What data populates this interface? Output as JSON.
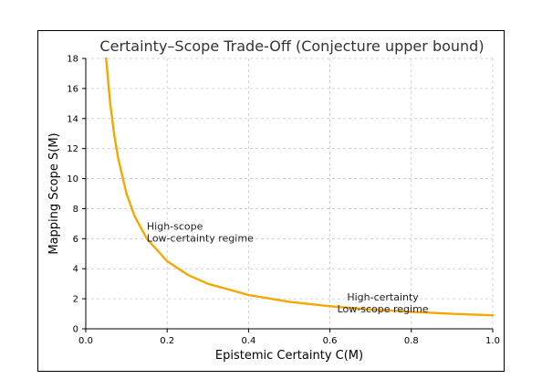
{
  "chart_data": {
    "type": "line",
    "title": "Certainty–Scope Trade-Off (Conjecture upper bound)",
    "xlabel": "Epistemic Certainty  C(M)",
    "ylabel": "Mapping Scope  S(M)",
    "xlim": [
      0.0,
      1.0
    ],
    "ylim": [
      0,
      18
    ],
    "xticks": [
      "0.0",
      "0.2",
      "0.4",
      "0.6",
      "0.8",
      "1.0"
    ],
    "yticks": [
      "0",
      "2",
      "4",
      "6",
      "8",
      "10",
      "12",
      "14",
      "16",
      "18"
    ],
    "grid": true,
    "series": [
      {
        "color": "#f5a800",
        "x": [
          0.05,
          0.06,
          0.07,
          0.08,
          0.1,
          0.12,
          0.15,
          0.2,
          0.25,
          0.3,
          0.4,
          0.5,
          0.6,
          0.7,
          0.8,
          0.9,
          1.0
        ],
        "y": [
          18.0,
          15.0,
          12.9,
          11.3,
          9.0,
          7.5,
          6.0,
          4.5,
          3.6,
          3.0,
          2.25,
          1.8,
          1.5,
          1.29,
          1.13,
          1.0,
          0.9
        ]
      }
    ],
    "annotations": [
      {
        "lines": [
          "High-scope",
          "Low-certainty regime"
        ],
        "x": 0.15,
        "y": 6.6,
        "align": "left"
      },
      {
        "lines": [
          "High-certainty",
          "Low-scope regime"
        ],
        "x": 0.73,
        "y": 1.9,
        "align": "center"
      }
    ]
  }
}
